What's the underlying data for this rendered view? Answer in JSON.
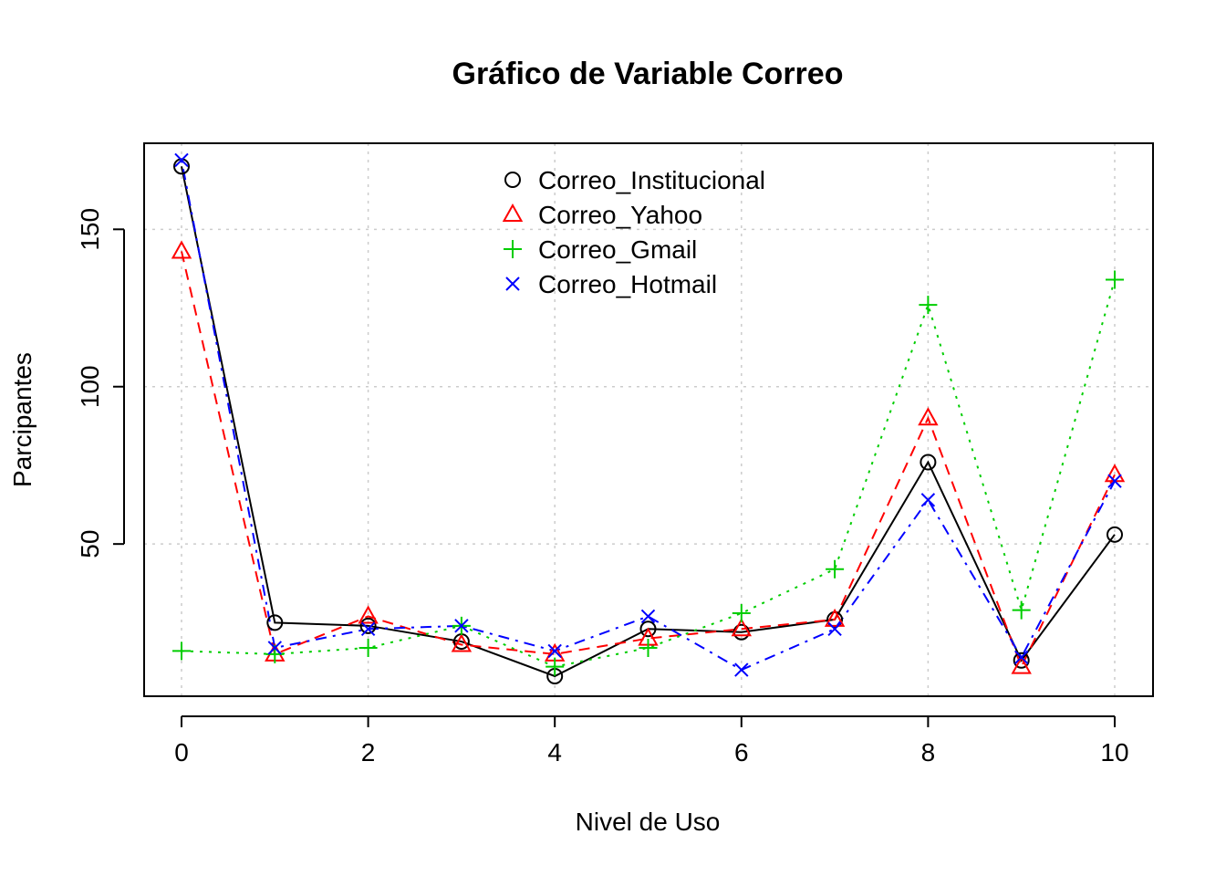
{
  "chart_data": {
    "type": "line",
    "title": "Gráfico de Variable Correo",
    "xlabel": "Nivel de Uso",
    "ylabel": "Parcipantes",
    "x": [
      0,
      1,
      2,
      3,
      4,
      5,
      6,
      7,
      8,
      9,
      10
    ],
    "xlim": [
      0,
      10
    ],
    "ylim": [
      8,
      173
    ],
    "xticks": [
      0,
      2,
      4,
      6,
      8,
      10
    ],
    "yticks": [
      50,
      100,
      150
    ],
    "grid": true,
    "legend_position": "top-center",
    "series": [
      {
        "name": "Correo_Institucional",
        "color": "#000000",
        "marker": "circle",
        "dash": "solid",
        "values": [
          170,
          25,
          24,
          19,
          8,
          23,
          22,
          26,
          76,
          13,
          53
        ]
      },
      {
        "name": "Correo_Yahoo",
        "color": "#ff0000",
        "marker": "triangle",
        "dash": "dashed",
        "values": [
          143,
          15,
          27,
          18,
          15,
          20,
          23,
          26,
          90,
          11,
          72
        ]
      },
      {
        "name": "Correo_Gmail",
        "color": "#00cd00",
        "marker": "plus",
        "dash": "dotted",
        "values": [
          16,
          15,
          17,
          24,
          11,
          17,
          28,
          42,
          126,
          29,
          134
        ]
      },
      {
        "name": "Correo_Hotmail",
        "color": "#0000ff",
        "marker": "cross",
        "dash": "dashdot",
        "values": [
          172,
          17,
          23,
          24,
          16,
          27,
          10,
          23,
          64,
          14,
          70
        ]
      }
    ]
  }
}
